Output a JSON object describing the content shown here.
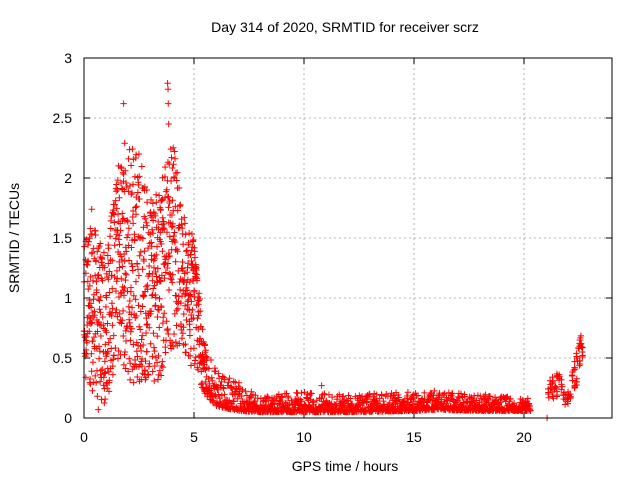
{
  "chart_data": {
    "type": "scatter",
    "title": "Day 314 of 2020, SRMTID for receiver scrz",
    "xlabel": "GPS time / hours",
    "ylabel": "SRMTID / TECUs",
    "xlim": [
      0,
      24
    ],
    "ylim": [
      0,
      3
    ],
    "xticks": [
      0,
      5,
      10,
      15,
      20
    ],
    "yticks": [
      0,
      0.5,
      1,
      1.5,
      2,
      2.5,
      3
    ],
    "xtick_labels": [
      "0",
      "5",
      "10",
      "15",
      "20"
    ],
    "ytick_labels": [
      "0",
      "0.5",
      "1",
      "1.5",
      "2",
      "2.5",
      "3"
    ],
    "grid": true,
    "marker": "+",
    "series": [
      {
        "name": "SRMTID",
        "color": "#ff0000",
        "envelope": [
          {
            "x": 0.0,
            "lo": 0.3,
            "hi": 1.5
          },
          {
            "x": 0.5,
            "lo": 0.2,
            "hi": 1.7
          },
          {
            "x": 1.0,
            "lo": 0.1,
            "hi": 1.3
          },
          {
            "x": 1.5,
            "lo": 0.5,
            "hi": 2.1
          },
          {
            "x": 2.0,
            "lo": 0.3,
            "hi": 2.3
          },
          {
            "x": 2.5,
            "lo": 0.25,
            "hi": 2.2
          },
          {
            "x": 3.0,
            "lo": 0.3,
            "hi": 1.8
          },
          {
            "x": 3.5,
            "lo": 0.3,
            "hi": 2.0
          },
          {
            "x": 4.0,
            "lo": 0.6,
            "hi": 2.4
          },
          {
            "x": 4.5,
            "lo": 0.5,
            "hi": 1.7
          },
          {
            "x": 5.0,
            "lo": 0.4,
            "hi": 1.5
          },
          {
            "x": 5.5,
            "lo": 0.2,
            "hi": 0.6
          },
          {
            "x": 6.0,
            "lo": 0.1,
            "hi": 0.4
          },
          {
            "x": 7.0,
            "lo": 0.06,
            "hi": 0.3
          },
          {
            "x": 8.0,
            "lo": 0.05,
            "hi": 0.18
          },
          {
            "x": 10.0,
            "lo": 0.05,
            "hi": 0.22
          },
          {
            "x": 12.0,
            "lo": 0.05,
            "hi": 0.2
          },
          {
            "x": 15.0,
            "lo": 0.06,
            "hi": 0.22
          },
          {
            "x": 16.0,
            "lo": 0.07,
            "hi": 0.23
          },
          {
            "x": 18.0,
            "lo": 0.06,
            "hi": 0.2
          },
          {
            "x": 20.3,
            "lo": 0.06,
            "hi": 0.16
          }
        ],
        "highlights": [
          {
            "x": 1.8,
            "y": 2.62
          },
          {
            "x": 3.8,
            "y": 2.79
          },
          {
            "x": 3.82,
            "y": 2.74
          },
          {
            "x": 3.85,
            "y": 2.45
          },
          {
            "x": 3.83,
            "y": 2.62
          },
          {
            "x": 1.85,
            "y": 2.29
          },
          {
            "x": 2.5,
            "y": 2.2
          },
          {
            "x": 0.35,
            "y": 1.74
          },
          {
            "x": 0.65,
            "y": 0.07
          },
          {
            "x": 10.8,
            "y": 0.27
          },
          {
            "x": 21.05,
            "y": 0.0
          }
        ],
        "tail": [
          {
            "x": 21.1,
            "y": 0.2
          },
          {
            "x": 21.2,
            "y": 0.28
          },
          {
            "x": 21.3,
            "y": 0.3
          },
          {
            "x": 21.4,
            "y": 0.25
          },
          {
            "x": 21.5,
            "y": 0.35
          },
          {
            "x": 21.6,
            "y": 0.33
          },
          {
            "x": 21.7,
            "y": 0.28
          },
          {
            "x": 21.8,
            "y": 0.2
          },
          {
            "x": 21.9,
            "y": 0.15
          },
          {
            "x": 22.0,
            "y": 0.12
          },
          {
            "x": 22.1,
            "y": 0.2
          },
          {
            "x": 22.2,
            "y": 0.35
          },
          {
            "x": 22.3,
            "y": 0.42
          },
          {
            "x": 22.4,
            "y": 0.5
          },
          {
            "x": 22.5,
            "y": 0.58
          },
          {
            "x": 22.55,
            "y": 0.65
          },
          {
            "x": 22.6,
            "y": 0.62
          },
          {
            "x": 22.65,
            "y": 0.55
          },
          {
            "x": 22.3,
            "y": 0.25
          },
          {
            "x": 22.4,
            "y": 0.3
          },
          {
            "x": 21.3,
            "y": 0.18
          },
          {
            "x": 21.5,
            "y": 0.22
          },
          {
            "x": 22.55,
            "y": 0.45
          },
          {
            "x": 22.0,
            "y": 0.2
          }
        ]
      }
    ]
  }
}
